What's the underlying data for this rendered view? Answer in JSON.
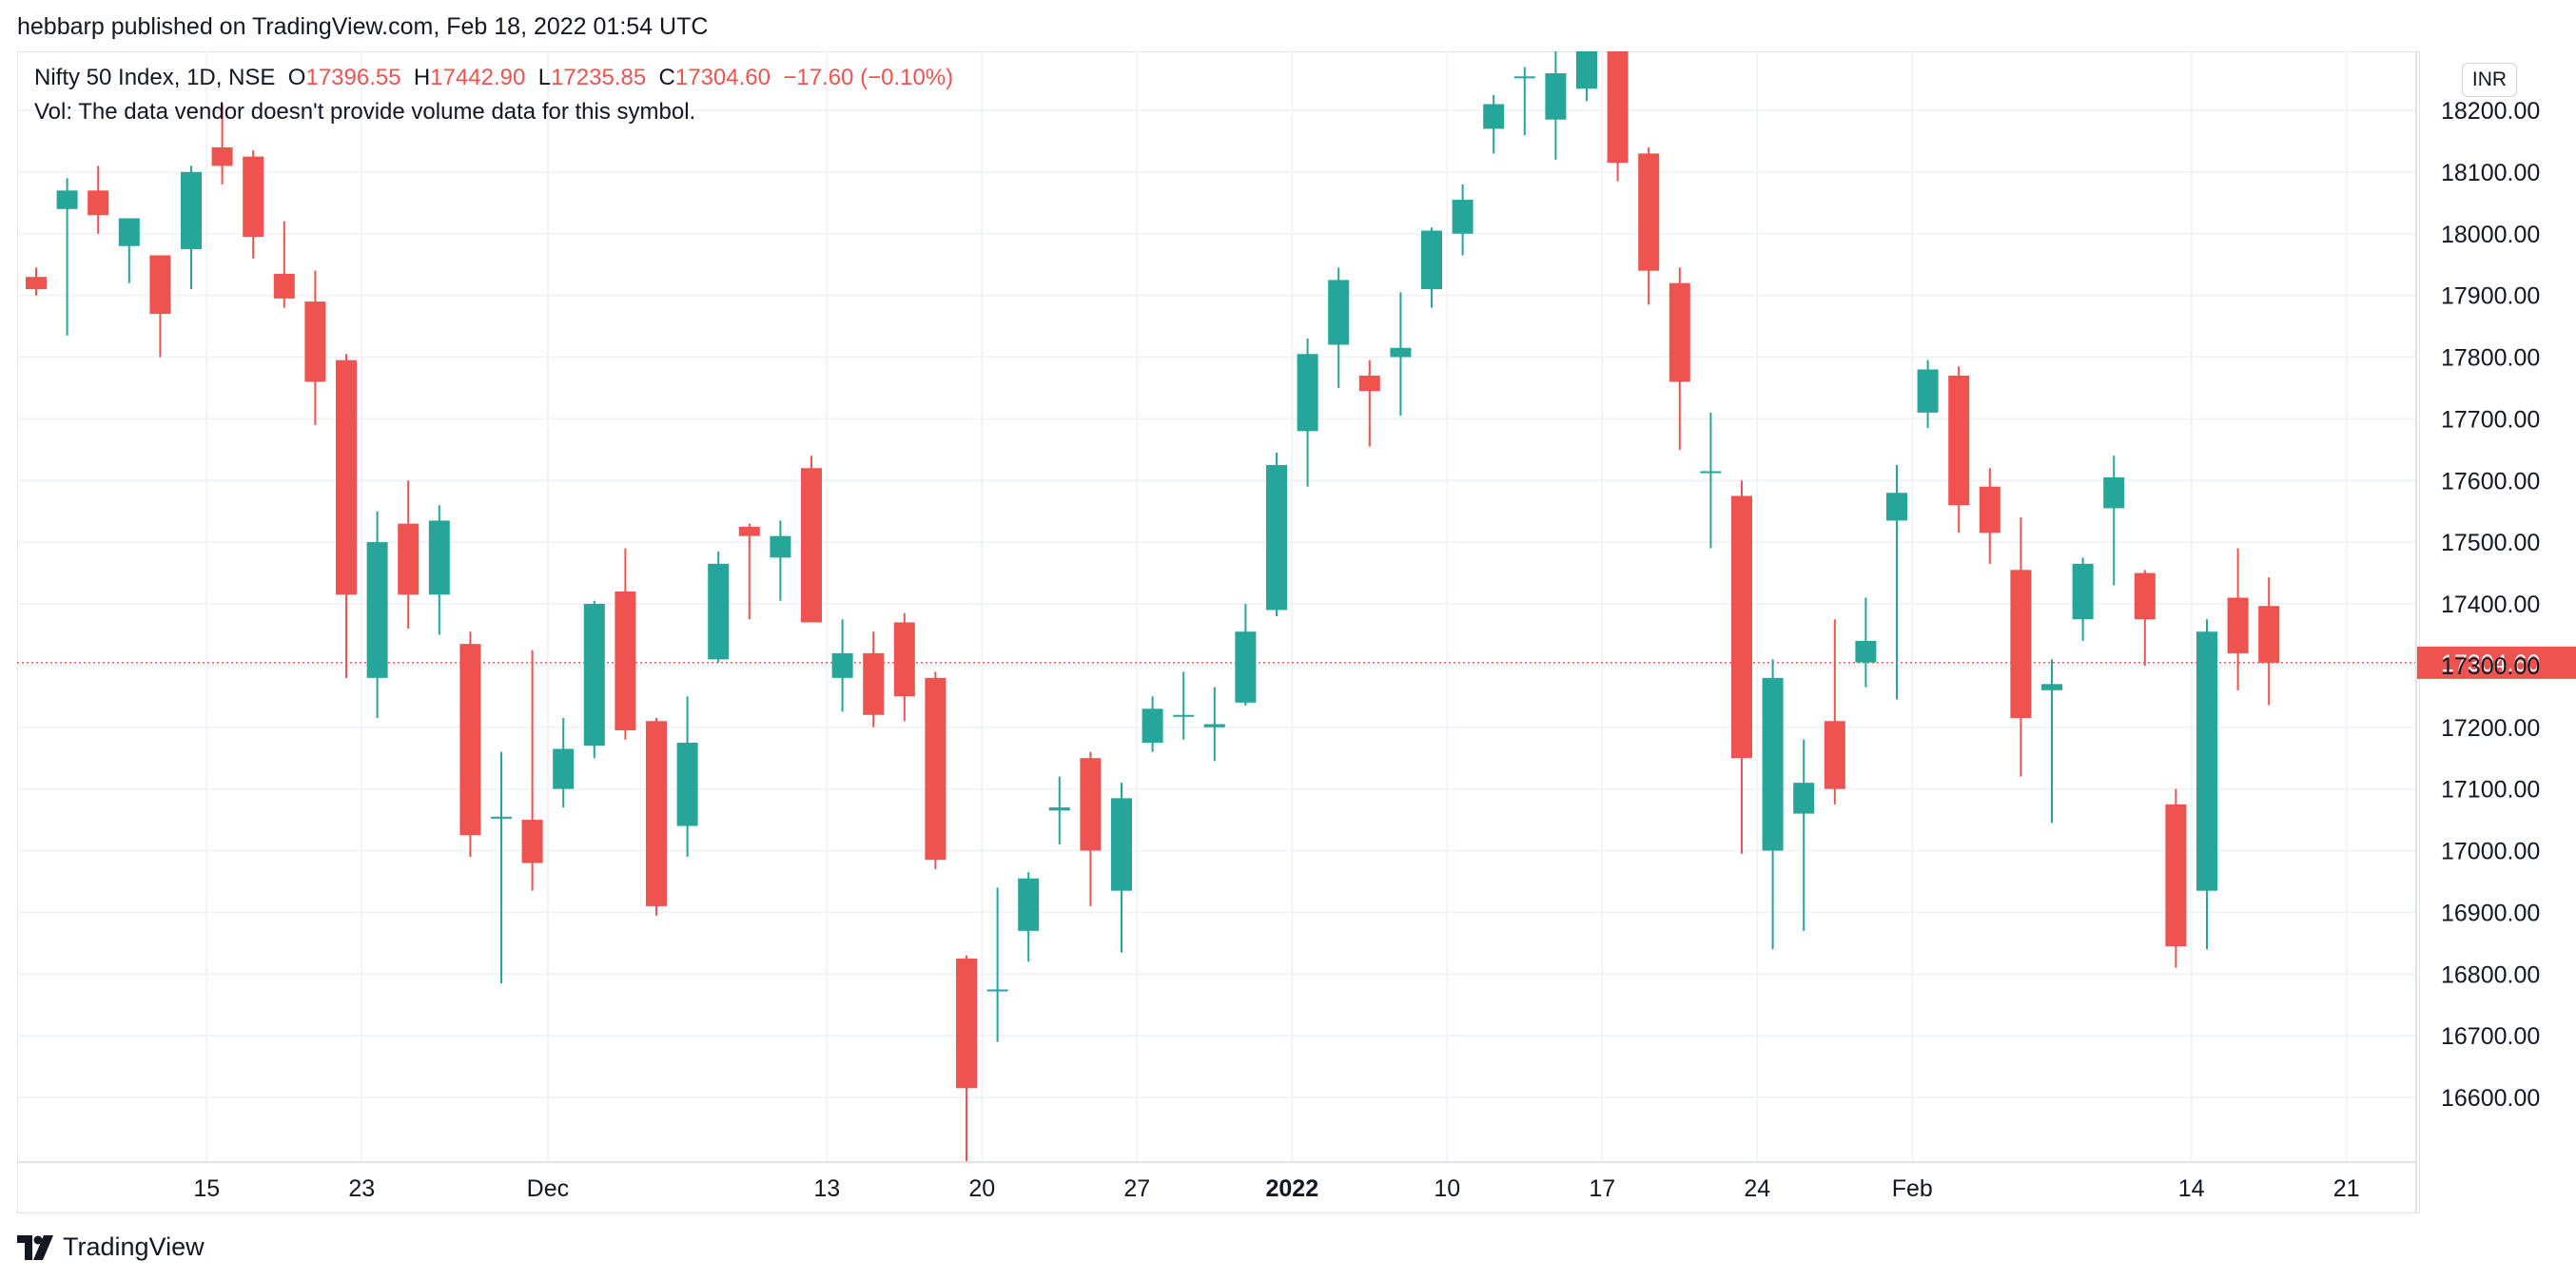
{
  "header": {
    "published": "hebbarp published on TradingView.com, Feb 18, 2022 01:54 UTC"
  },
  "legend": {
    "symbol": "Nifty 50 Index, 1D, NSE",
    "o_label": "O",
    "o_value": "17396.55",
    "h_label": "H",
    "h_value": "17442.90",
    "l_label": "L",
    "l_value": "17235.85",
    "c_label": "C",
    "c_value": "17304.60",
    "change": "−17.60 (−0.10%)",
    "vol_note": "Vol: The data vendor doesn't provide volume data for this symbol."
  },
  "currency_button": "INR",
  "footer": {
    "brand": "TradingView"
  },
  "colors": {
    "up": "#26a69a",
    "down": "#ef5350",
    "grid": "#f0f3fa",
    "text": "#131722"
  },
  "chart_data": {
    "type": "candlestick",
    "y_ticks": [
      "16600.00",
      "16700.00",
      "16800.00",
      "16900.00",
      "17000.00",
      "17100.00",
      "17200.00",
      "17300.00",
      "17400.00",
      "17500.00",
      "17600.00",
      "17700.00",
      "17800.00",
      "17900.00",
      "18000.00",
      "18100.00",
      "18200.00"
    ],
    "x_ticks": [
      {
        "label": "15",
        "at": 5.5,
        "bold": false
      },
      {
        "label": "23",
        "at": 10.5,
        "bold": false
      },
      {
        "label": "Dec",
        "at": 16.5,
        "bold": false
      },
      {
        "label": "13",
        "at": 25.5,
        "bold": false
      },
      {
        "label": "20",
        "at": 30.5,
        "bold": false
      },
      {
        "label": "27",
        "at": 35.5,
        "bold": false
      },
      {
        "label": "2022",
        "at": 40.5,
        "bold": true
      },
      {
        "label": "10",
        "at": 45.5,
        "bold": false
      },
      {
        "label": "17",
        "at": 50.5,
        "bold": false
      },
      {
        "label": "24",
        "at": 55.5,
        "bold": false
      },
      {
        "label": "Feb",
        "at": 60.5,
        "bold": false
      },
      {
        "label": "14",
        "at": 69.5,
        "bold": false
      },
      {
        "label": "21",
        "at": 74.5,
        "bold": false
      }
    ],
    "last_price": "17304.60",
    "candles": [
      [
        17930,
        17945,
        17900,
        17910
      ],
      [
        18040,
        18090,
        17835,
        18070
      ],
      [
        18070,
        18110,
        18000,
        18030
      ],
      [
        17980,
        18020,
        17920,
        18025
      ],
      [
        17965,
        17965,
        17800,
        17870
      ],
      [
        17975,
        18110,
        17910,
        18100
      ],
      [
        18140,
        18210,
        18080,
        18110
      ],
      [
        18125,
        18135,
        17960,
        17995
      ],
      [
        17935,
        18020,
        17880,
        17895
      ],
      [
        17890,
        17940,
        17690,
        17760
      ],
      [
        17795,
        17805,
        17280,
        17415
      ],
      [
        17280,
        17550,
        17215,
        17500
      ],
      [
        17530,
        17600,
        17360,
        17415
      ],
      [
        17415,
        17560,
        17350,
        17535
      ],
      [
        17335,
        17355,
        16990,
        17025
      ],
      [
        17055,
        17160,
        16785,
        17055
      ],
      [
        17050,
        17325,
        16935,
        16980
      ],
      [
        17100,
        17215,
        17070,
        17165
      ],
      [
        17170,
        17405,
        17150,
        17400
      ],
      [
        17420,
        17490,
        17180,
        17195
      ],
      [
        17210,
        17215,
        16895,
        16910
      ],
      [
        17040,
        17250,
        16990,
        17175
      ],
      [
        17310,
        17485,
        17305,
        17465
      ],
      [
        17525,
        17530,
        17375,
        17510
      ],
      [
        17475,
        17535,
        17405,
        17510
      ],
      [
        17620,
        17640,
        17370,
        17370
      ],
      [
        17280,
        17375,
        17225,
        17320
      ],
      [
        17320,
        17355,
        17200,
        17220
      ],
      [
        17370,
        17385,
        17210,
        17250
      ],
      [
        17280,
        17290,
        16970,
        16985
      ],
      [
        16825,
        16830,
        16410,
        16615
      ],
      [
        16775,
        16940,
        16690,
        16775
      ],
      [
        16870,
        16965,
        16820,
        16955
      ],
      [
        17065,
        17120,
        17010,
        17070
      ],
      [
        17150,
        17160,
        16910,
        17000
      ],
      [
        16935,
        17110,
        16835,
        17085
      ],
      [
        17175,
        17250,
        17160,
        17230
      ],
      [
        17220,
        17290,
        17180,
        17220
      ],
      [
        17200,
        17265,
        17145,
        17205
      ],
      [
        17240,
        17400,
        17235,
        17355
      ],
      [
        17390,
        17645,
        17380,
        17625
      ],
      [
        17680,
        17830,
        17590,
        17805
      ],
      [
        17820,
        17945,
        17750,
        17925
      ],
      [
        17770,
        17795,
        17655,
        17745
      ],
      [
        17800,
        17905,
        17705,
        17815
      ],
      [
        17910,
        18010,
        17880,
        18005
      ],
      [
        18000,
        18080,
        17965,
        18055
      ],
      [
        18170,
        18225,
        18130,
        18210
      ],
      [
        18255,
        18270,
        18160,
        18255
      ],
      [
        18185,
        18350,
        18120,
        18260
      ],
      [
        18235,
        18350,
        18215,
        18310
      ],
      [
        18305,
        18340,
        18085,
        18115
      ],
      [
        18130,
        18140,
        17885,
        17940
      ],
      [
        17920,
        17945,
        17650,
        17760
      ],
      [
        17615,
        17710,
        17490,
        17615
      ],
      [
        17575,
        17600,
        16995,
        17150
      ],
      [
        17000,
        17310,
        16840,
        17280
      ],
      [
        17060,
        17180,
        16870,
        17110
      ],
      [
        17210,
        17375,
        17075,
        17100
      ],
      [
        17305,
        17410,
        17265,
        17340
      ],
      [
        17535,
        17625,
        17245,
        17580
      ],
      [
        17710,
        17795,
        17685,
        17780
      ],
      [
        17770,
        17785,
        17515,
        17560
      ],
      [
        17590,
        17620,
        17465,
        17515
      ],
      [
        17455,
        17540,
        17120,
        17215
      ],
      [
        17260,
        17310,
        17045,
        17270
      ],
      [
        17375,
        17475,
        17340,
        17465
      ],
      [
        17555,
        17640,
        17430,
        17605
      ],
      [
        17450,
        17455,
        17300,
        17375
      ],
      [
        17075,
        17100,
        16810,
        16845
      ],
      [
        16935,
        17375,
        16840,
        17355
      ],
      [
        17410,
        17490,
        17260,
        17320
      ],
      [
        17396.55,
        17442.9,
        17235.85,
        17304.6
      ]
    ]
  }
}
